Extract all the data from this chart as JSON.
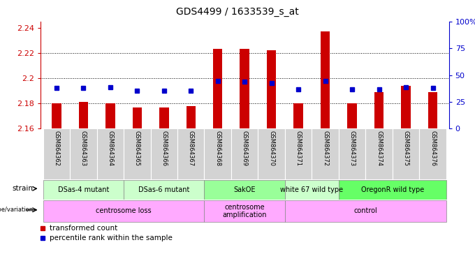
{
  "title": "GDS4499 / 1633539_s_at",
  "samples": [
    "GSM864362",
    "GSM864363",
    "GSM864364",
    "GSM864365",
    "GSM864366",
    "GSM864367",
    "GSM864368",
    "GSM864369",
    "GSM864370",
    "GSM864371",
    "GSM864372",
    "GSM864373",
    "GSM864374",
    "GSM864375",
    "GSM864376"
  ],
  "bar_values": [
    2.18,
    2.181,
    2.18,
    2.177,
    2.177,
    2.178,
    2.223,
    2.223,
    2.222,
    2.18,
    2.237,
    2.18,
    2.189,
    2.194,
    2.189
  ],
  "percentile_values": [
    2.192,
    2.192,
    2.193,
    2.19,
    2.19,
    2.19,
    2.198,
    2.197,
    2.196,
    2.191,
    2.198,
    2.191,
    2.191,
    2.193,
    2.192
  ],
  "ymin": 2.16,
  "ymax": 2.245,
  "yticks": [
    2.16,
    2.18,
    2.2,
    2.22,
    2.24
  ],
  "ytick_labels": [
    "2.16",
    "2.18",
    "2.2",
    "2.22",
    "2.24"
  ],
  "right_ytick_percents": [
    0,
    25,
    50,
    75,
    100
  ],
  "bar_color": "#cc0000",
  "percentile_color": "#0000cc",
  "bar_baseline": 2.16,
  "strain_groups": [
    {
      "label": "DSas-4 mutant",
      "start": 0,
      "end": 2,
      "color": "#ccffcc"
    },
    {
      "label": "DSas-6 mutant",
      "start": 3,
      "end": 5,
      "color": "#ccffcc"
    },
    {
      "label": "SakOE",
      "start": 6,
      "end": 8,
      "color": "#99ff99"
    },
    {
      "label": "white 67 wild type",
      "start": 9,
      "end": 10,
      "color": "#ccffcc"
    },
    {
      "label": "OregonR wild type",
      "start": 11,
      "end": 14,
      "color": "#66ff66"
    }
  ],
  "genotype_groups": [
    {
      "label": "centrosome loss",
      "start": 0,
      "end": 5,
      "color": "#ffaaff"
    },
    {
      "label": "centrosome\namplification",
      "start": 6,
      "end": 8,
      "color": "#ffaaff"
    },
    {
      "label": "control",
      "start": 9,
      "end": 14,
      "color": "#ffaaff"
    }
  ],
  "legend_items": [
    "transformed count",
    "percentile rank within the sample"
  ],
  "dotted_lines": [
    2.18,
    2.2,
    2.22
  ],
  "axis_left_color": "#cc0000",
  "axis_right_color": "#0000cc",
  "tick_label_bg": "#d3d3d3"
}
